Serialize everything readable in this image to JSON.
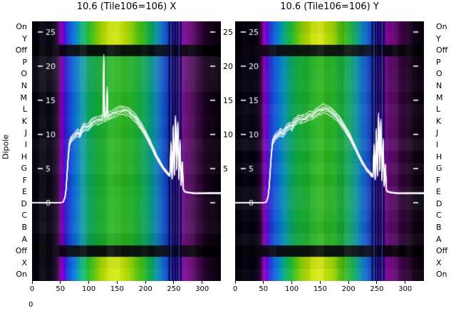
{
  "chart_data": {
    "type": "heatmap",
    "ylabel": "Dipole",
    "corner_label": "0",
    "rows": [
      "On",
      "Y",
      "Off",
      "P",
      "O",
      "N",
      "M",
      "L",
      "K",
      "J",
      "I",
      "H",
      "G",
      "F",
      "E",
      "D",
      "C",
      "B",
      "A",
      "Off",
      "X",
      "On"
    ],
    "row_kinds": [
      "bright",
      "bright",
      "off",
      "normal",
      "normal",
      "normal",
      "normal",
      "normal",
      "normal",
      "normal",
      "normal",
      "normal",
      "normal",
      "normal",
      "normal",
      "normal",
      "normal",
      "normal",
      "normal",
      "off",
      "bright",
      "bright"
    ],
    "x_ticks": [
      0,
      50,
      100,
      150,
      200,
      250,
      300
    ],
    "x_range": [
      0,
      333
    ],
    "overlay_axis": {
      "ticks": [
        0,
        5,
        10,
        15,
        20,
        25
      ],
      "right_labels": [
        25,
        20,
        15,
        10,
        5
      ],
      "range": [
        0,
        25
      ]
    },
    "dark_lines": [
      242,
      247,
      252,
      257,
      262
    ],
    "bright_lines": [
      245,
      259
    ],
    "background": "#ffffff",
    "text_color": "#000000",
    "curve_color": "#ffffff",
    "colors": {
      "normal": [
        [
          0,
          "#02000a"
        ],
        [
          0.12,
          "#060012"
        ],
        [
          0.138,
          "#30003e"
        ],
        [
          0.152,
          "#8a00a8"
        ],
        [
          0.168,
          "#5a00d0"
        ],
        [
          0.19,
          "#1430cc"
        ],
        [
          0.225,
          "#0a68d8"
        ],
        [
          0.26,
          "#0a93b4"
        ],
        [
          0.3,
          "#0aa45f"
        ],
        [
          0.35,
          "#16ad35"
        ],
        [
          0.42,
          "#27b424"
        ],
        [
          0.48,
          "#2fb41c"
        ],
        [
          0.54,
          "#1fae2e"
        ],
        [
          0.6,
          "#0ba255"
        ],
        [
          0.645,
          "#0a8fa0"
        ],
        [
          0.685,
          "#0b5bc8"
        ],
        [
          0.72,
          "#0a2cb4"
        ],
        [
          0.745,
          "#1a14a0"
        ],
        [
          0.77,
          "#4c0c9c"
        ],
        [
          0.8,
          "#6d0a86"
        ],
        [
          0.835,
          "#53045f"
        ],
        [
          0.88,
          "#2e0238"
        ],
        [
          0.93,
          "#150119"
        ],
        [
          1,
          "#08000d"
        ]
      ],
      "bright": [
        [
          0,
          "#02000a"
        ],
        [
          0.12,
          "#070014"
        ],
        [
          0.138,
          "#3c004c"
        ],
        [
          0.152,
          "#a400c4"
        ],
        [
          0.168,
          "#6a00e4"
        ],
        [
          0.19,
          "#1840e0"
        ],
        [
          0.225,
          "#0a80e0"
        ],
        [
          0.26,
          "#0ab48c"
        ],
        [
          0.295,
          "#20c23c"
        ],
        [
          0.33,
          "#66cf12"
        ],
        [
          0.365,
          "#a8dc06"
        ],
        [
          0.41,
          "#cfe90a"
        ],
        [
          0.45,
          "#d8ee14"
        ],
        [
          0.49,
          "#c2e40a"
        ],
        [
          0.53,
          "#8cd20a"
        ],
        [
          0.58,
          "#3cbe14"
        ],
        [
          0.625,
          "#0fae52"
        ],
        [
          0.66,
          "#0a96a8"
        ],
        [
          0.7,
          "#0c5ed4"
        ],
        [
          0.73,
          "#0f2cc0"
        ],
        [
          0.755,
          "#2a14b0"
        ],
        [
          0.78,
          "#5a0eb0"
        ],
        [
          0.81,
          "#860a9e"
        ],
        [
          0.845,
          "#64066e"
        ],
        [
          0.89,
          "#380242"
        ],
        [
          0.94,
          "#18011c"
        ],
        [
          1,
          "#09000e"
        ]
      ],
      "off": [
        [
          0,
          "#000004"
        ],
        [
          0.14,
          "#0c0010"
        ],
        [
          0.17,
          "#10041c"
        ],
        [
          0.22,
          "#081018"
        ],
        [
          0.35,
          "#0a140c"
        ],
        [
          0.5,
          "#0c160c"
        ],
        [
          0.62,
          "#081410"
        ],
        [
          0.7,
          "#060d20"
        ],
        [
          0.75,
          "#0c0618"
        ],
        [
          0.8,
          "#0e0414"
        ],
        [
          0.9,
          "#050008"
        ],
        [
          1,
          "#000004"
        ]
      ]
    },
    "panels": [
      {
        "title": "10.6 (Tile106=106) X",
        "curve": [
          [
            0,
            0
          ],
          [
            50,
            0
          ],
          [
            55,
            0.1
          ],
          [
            58,
            0.8
          ],
          [
            60,
            2
          ],
          [
            62,
            4.5
          ],
          [
            64,
            7
          ],
          [
            66,
            8.6
          ],
          [
            68,
            9.2
          ],
          [
            72,
            9.6
          ],
          [
            76,
            9.9
          ],
          [
            80,
            10.3
          ],
          [
            84,
            10
          ],
          [
            88,
            10.7
          ],
          [
            92,
            11.1
          ],
          [
            96,
            11
          ],
          [
            100,
            11.2
          ],
          [
            104,
            11.6
          ],
          [
            108,
            11.9
          ],
          [
            112,
            12.1
          ],
          [
            116,
            12
          ],
          [
            120,
            12.2
          ],
          [
            124,
            12.4
          ],
          [
            125,
            12.4
          ],
          [
            126.5,
            20.8
          ],
          [
            128,
            12.5
          ],
          [
            131,
            12.6
          ],
          [
            132.5,
            16.3
          ],
          [
            134,
            12.6
          ],
          [
            136,
            12.7
          ],
          [
            140,
            12.9
          ],
          [
            144,
            13.1
          ],
          [
            148,
            13.3
          ],
          [
            152,
            13.4
          ],
          [
            156,
            13.5
          ],
          [
            160,
            13.6
          ],
          [
            164,
            13.5
          ],
          [
            168,
            13.4
          ],
          [
            172,
            13.2
          ],
          [
            176,
            12.9
          ],
          [
            180,
            12.6
          ],
          [
            184,
            12.2
          ],
          [
            188,
            11.7
          ],
          [
            192,
            11.2
          ],
          [
            196,
            10.7
          ],
          [
            200,
            10.1
          ],
          [
            204,
            9.5
          ],
          [
            208,
            8.8
          ],
          [
            212,
            8.1
          ],
          [
            216,
            7.4
          ],
          [
            220,
            6.7
          ],
          [
            224,
            6.1
          ],
          [
            228,
            5.5
          ],
          [
            232,
            5
          ],
          [
            236,
            4.6
          ],
          [
            240,
            4.2
          ],
          [
            243,
            4
          ],
          [
            245,
            8.5
          ],
          [
            247,
            3.6
          ],
          [
            249,
            10.8
          ],
          [
            251,
            4.2
          ],
          [
            253,
            12.3
          ],
          [
            255,
            5
          ],
          [
            257,
            11.4
          ],
          [
            259,
            3.6
          ],
          [
            261,
            8.8
          ],
          [
            263,
            2.6
          ],
          [
            265,
            5.8
          ],
          [
            267,
            1.9
          ],
          [
            270,
            1.6
          ],
          [
            275,
            1.5
          ],
          [
            285,
            1.4
          ],
          [
            300,
            1.4
          ],
          [
            315,
            1.4
          ],
          [
            333,
            1.4
          ]
        ]
      },
      {
        "title": "10.6 (Tile106=106) Y",
        "curve": [
          [
            0,
            0
          ],
          [
            50,
            0
          ],
          [
            55,
            0.1
          ],
          [
            58,
            0.8
          ],
          [
            60,
            2.2
          ],
          [
            62,
            4.8
          ],
          [
            64,
            7.2
          ],
          [
            66,
            8.8
          ],
          [
            68,
            9.3
          ],
          [
            72,
            9.7
          ],
          [
            76,
            10
          ],
          [
            80,
            10.4
          ],
          [
            84,
            10.1
          ],
          [
            88,
            10.6
          ],
          [
            92,
            11
          ],
          [
            96,
            11.3
          ],
          [
            100,
            11.1
          ],
          [
            104,
            11.7
          ],
          [
            108,
            12
          ],
          [
            112,
            12.3
          ],
          [
            116,
            12.1
          ],
          [
            120,
            12.4
          ],
          [
            124,
            12.3
          ],
          [
            128,
            12.6
          ],
          [
            132,
            12.8
          ],
          [
            136,
            12.7
          ],
          [
            140,
            13
          ],
          [
            144,
            13.3
          ],
          [
            148,
            13.5
          ],
          [
            152,
            13.6
          ],
          [
            156,
            13.8
          ],
          [
            160,
            13.7
          ],
          [
            164,
            13.6
          ],
          [
            168,
            13.4
          ],
          [
            172,
            13.1
          ],
          [
            176,
            12.8
          ],
          [
            180,
            12.5
          ],
          [
            184,
            12.1
          ],
          [
            188,
            11.6
          ],
          [
            192,
            11.1
          ],
          [
            196,
            10.6
          ],
          [
            200,
            10
          ],
          [
            204,
            9.4
          ],
          [
            208,
            8.7
          ],
          [
            212,
            8
          ],
          [
            216,
            7.3
          ],
          [
            220,
            6.6
          ],
          [
            224,
            6
          ],
          [
            228,
            5.4
          ],
          [
            232,
            4.9
          ],
          [
            236,
            4.5
          ],
          [
            240,
            4.1
          ],
          [
            243,
            3.9
          ],
          [
            245,
            8.2
          ],
          [
            247,
            3.5
          ],
          [
            249,
            10.5
          ],
          [
            251,
            4
          ],
          [
            253,
            12.6
          ],
          [
            255,
            4.8
          ],
          [
            257,
            11.8
          ],
          [
            259,
            3.4
          ],
          [
            261,
            9
          ],
          [
            263,
            2.5
          ],
          [
            265,
            5.5
          ],
          [
            267,
            1.8
          ],
          [
            270,
            1.6
          ],
          [
            275,
            1.5
          ],
          [
            285,
            1.4
          ],
          [
            300,
            1.4
          ],
          [
            315,
            1.4
          ],
          [
            333,
            1.4
          ]
        ]
      }
    ]
  }
}
